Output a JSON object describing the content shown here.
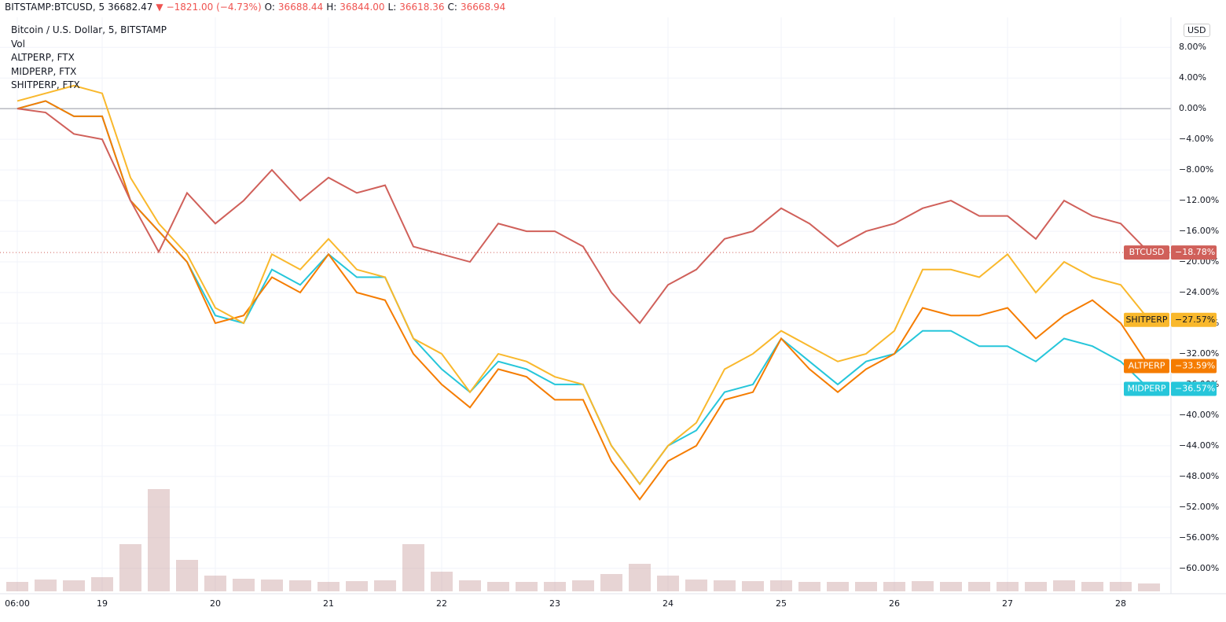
{
  "header": {
    "symbol": "BITSTAMP:BTCUSD, 5",
    "last": "36682.47",
    "change": "−1821.00 (−4.73%)",
    "o_label": "O:",
    "o": "36688.44",
    "h_label": "H:",
    "h": "36844.00",
    "l_label": "L:",
    "l": "36618.36",
    "c_label": "C:",
    "c": "36668.94"
  },
  "currency": "USD",
  "chart_data": {
    "type": "line",
    "legend": [
      "Bitcoin / U.S. Dollar, 5, BITSTAMP",
      "Vol",
      "ALTPERP, FTX",
      "MIDPERP, FTX",
      "SHITPERP, FTX"
    ],
    "categories": [
      "06:00",
      null,
      null,
      "19",
      null,
      null,
      null,
      "20",
      null,
      null,
      null,
      "21",
      null,
      null,
      null,
      "22",
      null,
      null,
      null,
      "23",
      null,
      null,
      null,
      "24",
      null,
      null,
      null,
      "25",
      null,
      null,
      null,
      "26",
      null,
      null,
      null,
      "27",
      null,
      null,
      null,
      "28",
      null
    ],
    "ylim": [
      -63,
      11
    ],
    "yticks": [
      {
        "value": 8,
        "label": "8.00%"
      },
      {
        "value": 4,
        "label": "4.00%"
      },
      {
        "value": 0,
        "label": "0.00%"
      },
      {
        "value": -4,
        "label": "−4.00%"
      },
      {
        "value": -8,
        "label": "−8.00%"
      },
      {
        "value": -12,
        "label": "−12.00%"
      },
      {
        "value": -16,
        "label": "−16.00%"
      },
      {
        "value": -20,
        "label": "−20.00%"
      },
      {
        "value": -24,
        "label": "−24.00%"
      },
      {
        "value": -28,
        "label": "−28.00%"
      },
      {
        "value": -32,
        "label": "−32.00%"
      },
      {
        "value": -36,
        "label": "−36.00%"
      },
      {
        "value": -40,
        "label": "−40.00%"
      },
      {
        "value": -44,
        "label": "−44.00%"
      },
      {
        "value": -48,
        "label": "−48.00%"
      },
      {
        "value": -52,
        "label": "−52.00%"
      },
      {
        "value": -56,
        "label": "−56.00%"
      },
      {
        "value": -60,
        "label": "−60.00%"
      }
    ],
    "grid": true,
    "series": [
      {
        "name": "BTCUSD",
        "color": "#d0605a",
        "last": {
          "value": -18.78,
          "label": "−18.78%"
        },
        "values": [
          0,
          -0.5,
          -3.3,
          -4,
          -12,
          -18.7,
          -11,
          -15,
          -12,
          -8,
          -12,
          -9,
          -11,
          -10,
          -18,
          -19,
          -20,
          -15,
          -16,
          -16,
          -18,
          -24,
          -28,
          -23,
          -21,
          -17,
          -16,
          -13,
          -15,
          -18,
          -16,
          -15,
          -13,
          -12,
          -14,
          -14,
          -17,
          -12,
          -14,
          -15,
          -18.78
        ]
      },
      {
        "name": "SHITPERP",
        "color": "#f9b82c",
        "last": {
          "value": -27.57,
          "label": "−27.57%"
        },
        "values": [
          1,
          2,
          3,
          2,
          -9,
          -15,
          -19,
          -26,
          -28,
          -19,
          -21,
          -17,
          -21,
          -22,
          -30,
          -32,
          -37,
          -32,
          -33,
          -35,
          -36,
          -44,
          -49,
          -44,
          -41,
          -34,
          -32,
          -29,
          -31,
          -33,
          -32,
          -29,
          -21,
          -21,
          -22,
          -19,
          -24,
          -20,
          -22,
          -23,
          -27.57
        ]
      },
      {
        "name": "ALTPERP",
        "color": "#f57c00",
        "last": {
          "value": -33.59,
          "label": "−33.59%"
        },
        "values": [
          0,
          1,
          -1,
          -1,
          -12,
          -16,
          -20,
          -28,
          -27,
          -22,
          -24,
          -19,
          -24,
          -25,
          -32,
          -36,
          -39,
          -34,
          -35,
          -38,
          -38,
          -46,
          -51,
          -46,
          -44,
          -38,
          -37,
          -30,
          -34,
          -37,
          -34,
          -32,
          -26,
          -27,
          -27,
          -26,
          -30,
          -27,
          -25,
          -28,
          -33.59
        ]
      },
      {
        "name": "MIDPERP",
        "color": "#26c6da",
        "last": {
          "value": -36.57,
          "label": "−36.57%"
        },
        "values": [
          0,
          1,
          -1,
          -1,
          -12,
          -16,
          -20,
          -27,
          -28,
          -21,
          -23,
          -19,
          -22,
          -22,
          -30,
          -34,
          -37,
          -33,
          -34,
          -36,
          -36,
          -44,
          -49,
          -44,
          -42,
          -37,
          -36,
          -30,
          -33,
          -36,
          -33,
          -32,
          -29,
          -29,
          -31,
          -31,
          -33,
          -30,
          -31,
          -33,
          -36.57
        ]
      }
    ],
    "volume": {
      "color": "#c9a0a0",
      "values": [
        12,
        15,
        14,
        18,
        60,
        130,
        40,
        20,
        16,
        15,
        14,
        12,
        13,
        14,
        60,
        25,
        14,
        12,
        12,
        12,
        14,
        22,
        35,
        20,
        15,
        14,
        13,
        14,
        12,
        12,
        12,
        12,
        13,
        12,
        12,
        12,
        12,
        14,
        12,
        12,
        10
      ]
    }
  }
}
